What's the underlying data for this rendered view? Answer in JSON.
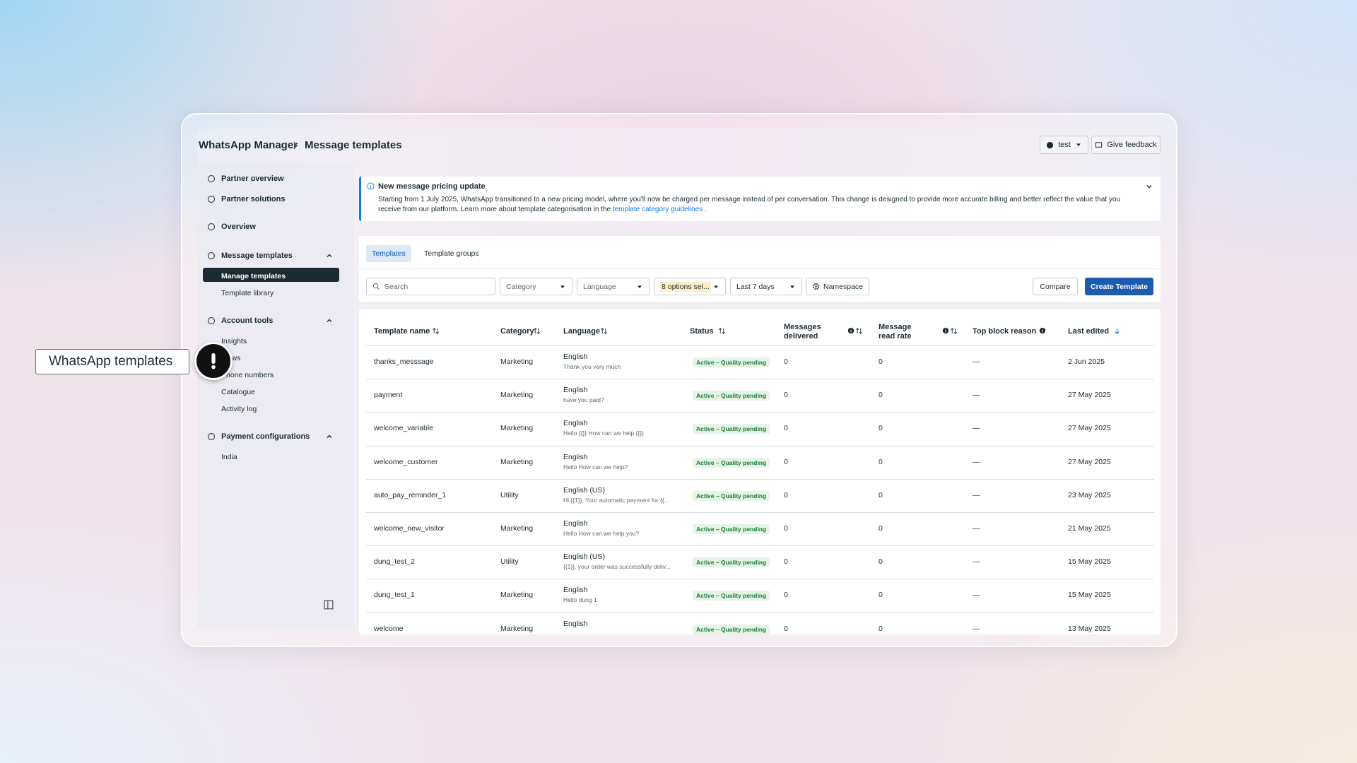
{
  "header": {
    "app": "WhatsApp Manager",
    "page": "Message templates",
    "account": "test",
    "feedback": "Give feedback"
  },
  "sidebar": {
    "top": [
      "Partner overview",
      "Partner solutions",
      "Overview"
    ],
    "sections": [
      {
        "title": "Message templates",
        "items": [
          "Manage templates",
          "Template library"
        ],
        "active": 0
      },
      {
        "title": "Account tools",
        "items": [
          "Insights",
          "Flows",
          "Phone numbers",
          "Catalogue",
          "Activity log"
        ]
      },
      {
        "title": "Payment configurations",
        "items": [
          "India"
        ]
      }
    ]
  },
  "banner": {
    "title": "New message pricing update",
    "text": "Starting from 1 July 2025, WhatsApp transitioned to a new pricing model, where you'll now be charged per message instead of per conversation. This change is designed to provide more accurate billing and better reflect the value that you receive from our platform. Learn more about template categorisation in the",
    "link": "template category guidelines",
    "end": "."
  },
  "tabs": [
    "Templates",
    "Template groups"
  ],
  "filters": {
    "search": "Search",
    "category": "Category",
    "language": "Language",
    "status": "8 options sel...",
    "period": "Last 7 days",
    "namespace": "Namespace",
    "compare": "Compare",
    "create": "Create Template"
  },
  "table": {
    "columns": [
      "Template name",
      "Category",
      "Language",
      "Status",
      "Messages delivered",
      "Message read rate",
      "Top block reason",
      "Last edited"
    ],
    "rows": [
      {
        "name": "thanks_messsage",
        "category": "Marketing",
        "language": "English",
        "preview": "Thank you very much",
        "status": "Active – Quality pending",
        "delivered": 0,
        "read_rate": 0,
        "block_reason": "—",
        "last_edited": "2 Jun 2025"
      },
      {
        "name": "payment",
        "category": "Marketing",
        "language": "English",
        "preview": "have you paid?",
        "status": "Active – Quality pending",
        "delivered": 0,
        "read_rate": 0,
        "block_reason": "—",
        "last_edited": "27 May 2025"
      },
      {
        "name": "welcome_variable",
        "category": "Marketing",
        "language": "English",
        "preview": "Hello {{}} How can we help {{}}",
        "status": "Active – Quality pending",
        "delivered": 0,
        "read_rate": 0,
        "block_reason": "—",
        "last_edited": "27 May 2025"
      },
      {
        "name": "welcome_customer",
        "category": "Marketing",
        "language": "English",
        "preview": "Hello How can we help?",
        "status": "Active – Quality pending",
        "delivered": 0,
        "read_rate": 0,
        "block_reason": "—",
        "last_edited": "27 May 2025"
      },
      {
        "name": "auto_pay_reminder_1",
        "category": "Utility",
        "language": "English (US)",
        "preview": "Hi {{1}}, Your automatic payment for {{...",
        "status": "Active – Quality pending",
        "delivered": 0,
        "read_rate": 0,
        "block_reason": "—",
        "last_edited": "23 May 2025"
      },
      {
        "name": "welcome_new_visitor",
        "category": "Marketing",
        "language": "English",
        "preview": "Hello How can we help you?",
        "status": "Active – Quality pending",
        "delivered": 0,
        "read_rate": 0,
        "block_reason": "—",
        "last_edited": "21 May 2025"
      },
      {
        "name": "dung_test_2",
        "category": "Utility",
        "language": "English (US)",
        "preview": "{{1}}, your order was successfully deliv...",
        "status": "Active – Quality pending",
        "delivered": 0,
        "read_rate": 0,
        "block_reason": "—",
        "last_edited": "15 May 2025"
      },
      {
        "name": "dung_test_1",
        "category": "Marketing",
        "language": "English",
        "preview": "Hello dung 1",
        "status": "Active – Quality pending",
        "delivered": 0,
        "read_rate": 0,
        "block_reason": "—",
        "last_edited": "15 May 2025"
      },
      {
        "name": "welcome",
        "category": "Marketing",
        "language": "English",
        "status": "Active – Quality pending",
        "delivered": 0,
        "read_rate": 0,
        "block_reason": "—",
        "last_edited": "13 May 2025"
      }
    ]
  },
  "tooltip": "WhatsApp templates"
}
